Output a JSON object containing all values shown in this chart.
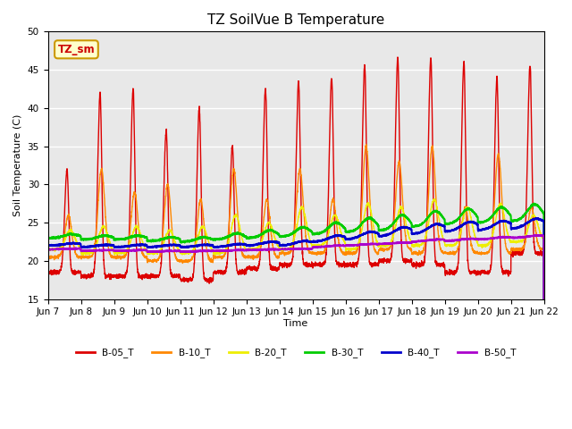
{
  "title": "TZ SoilVue B Temperature",
  "ylabel": "Soil Temperature (C)",
  "xlabel": "Time",
  "ylim": [
    15,
    50
  ],
  "x_tick_labels": [
    "Jun 7",
    "Jun 8",
    "Jun 9",
    "Jun 10",
    "Jun 11",
    "Jun 12",
    "Jun 13",
    "Jun 14",
    "Jun 15",
    "Jun 16",
    "Jun 17",
    "Jun 18",
    "Jun 19",
    "Jun 20",
    "Jun 21",
    "Jun 22"
  ],
  "legend_box_label": "TZ_sm",
  "plot_bg": "#e8e8e8",
  "fig_bg": "#ffffff",
  "lines": {
    "B-05_T": {
      "color": "#dd0000",
      "lw": 1.0
    },
    "B-10_T": {
      "color": "#ff8800",
      "lw": 1.0
    },
    "B-20_T": {
      "color": "#eeee00",
      "lw": 1.0
    },
    "B-30_T": {
      "color": "#00cc00",
      "lw": 1.5
    },
    "B-40_T": {
      "color": "#0000cc",
      "lw": 1.5
    },
    "B-50_T": {
      "color": "#aa00cc",
      "lw": 1.5
    }
  },
  "b05_peaks": [
    32,
    42,
    42.5,
    37,
    40,
    35,
    42.5,
    43.5,
    44,
    45.5,
    46.5,
    46.5,
    46,
    44,
    45.5
  ],
  "b05_troughs": [
    18.5,
    18,
    18,
    18,
    17.5,
    18.5,
    19,
    19.5,
    19.5,
    19.5,
    20,
    19.5,
    18.5,
    18.5,
    21
  ],
  "b10_peaks": [
    26,
    32,
    29,
    30,
    28,
    32,
    28,
    32,
    28,
    35,
    33,
    35,
    27,
    34,
    27
  ],
  "b10_troughs": [
    20.5,
    20.5,
    20.5,
    20,
    20,
    20.5,
    20.5,
    21,
    21,
    21,
    21.5,
    21,
    21,
    21,
    21.5
  ],
  "b20_peaks": [
    24,
    24.5,
    24.5,
    24,
    24.5,
    26,
    25,
    27,
    26,
    27.5,
    27,
    28,
    27,
    27.5,
    26
  ],
  "b20_troughs": [
    21.5,
    21,
    21,
    21,
    21,
    21,
    21.5,
    21.5,
    22,
    21.5,
    22,
    22,
    22,
    22,
    22.5
  ],
  "b30_base": [
    23.0,
    22.8,
    22.8,
    22.6,
    22.5,
    22.8,
    23.0,
    23.2,
    23.5,
    23.8,
    24.0,
    24.5,
    24.8,
    25.0,
    25.2
  ],
  "b30_amp": [
    0.5,
    0.5,
    0.5,
    0.5,
    0.6,
    0.8,
    1.0,
    1.2,
    1.5,
    1.8,
    2.0,
    2.0,
    2.0,
    2.0,
    2.2
  ],
  "b40_base": [
    22.0,
    21.8,
    21.8,
    21.8,
    21.8,
    21.8,
    22.0,
    22.0,
    22.5,
    22.8,
    23.2,
    23.5,
    23.8,
    24.0,
    24.2
  ],
  "b40_amp": [
    0.3,
    0.3,
    0.3,
    0.3,
    0.3,
    0.4,
    0.5,
    0.6,
    0.8,
    1.0,
    1.2,
    1.3,
    1.3,
    1.2,
    1.3
  ],
  "b50_base": [
    21.5,
    21.3,
    21.3,
    21.2,
    21.2,
    21.3,
    21.4,
    21.5,
    21.8,
    22.0,
    22.2,
    22.5,
    22.6,
    22.8,
    23.0
  ],
  "b50_amp": [
    0.1,
    0.1,
    0.1,
    0.1,
    0.1,
    0.1,
    0.1,
    0.1,
    0.2,
    0.2,
    0.2,
    0.3,
    0.3,
    0.3,
    0.3
  ]
}
